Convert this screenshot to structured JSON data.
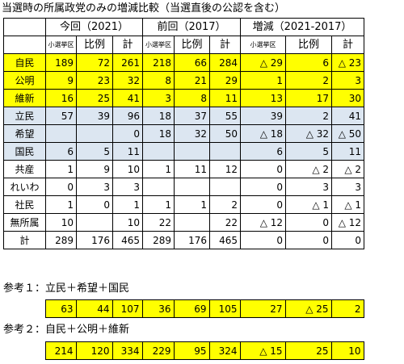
{
  "title": "当選時の所属政党のみの増減比較（当選直後の公認を含む）",
  "groups": [
    "今回（2021）",
    "前回（2017）",
    "増減（2021-2017）"
  ],
  "subheaders": [
    "小選挙区",
    "比例",
    "計"
  ],
  "rows": [
    {
      "party": "自民",
      "style": "yellow",
      "cells": [
        "189",
        "72",
        "261",
        "218",
        "66",
        "284",
        "△ 29",
        "6",
        "△ 23"
      ]
    },
    {
      "party": "公明",
      "style": "yellow",
      "cells": [
        "9",
        "23",
        "32",
        "8",
        "21",
        "29",
        "1",
        "2",
        "3"
      ]
    },
    {
      "party": "維新",
      "style": "yellow",
      "cells": [
        "16",
        "25",
        "41",
        "3",
        "8",
        "11",
        "13",
        "17",
        "30"
      ]
    },
    {
      "party": "立民",
      "style": "blue",
      "cells": [
        "57",
        "39",
        "96",
        "18",
        "37",
        "55",
        "39",
        "2",
        "41"
      ]
    },
    {
      "party": "希望",
      "style": "blue",
      "cells": [
        "",
        "",
        "0",
        "18",
        "32",
        "50",
        "△ 18",
        "△ 32",
        "△ 50"
      ]
    },
    {
      "party": "国民",
      "style": "blue",
      "cells": [
        "6",
        "5",
        "11",
        "",
        "",
        "",
        "6",
        "5",
        "11"
      ]
    },
    {
      "party": "共産",
      "style": "",
      "cells": [
        "1",
        "9",
        "10",
        "1",
        "11",
        "12",
        "0",
        "△ 2",
        "△ 2"
      ]
    },
    {
      "party": "れいわ",
      "style": "",
      "cells": [
        "0",
        "3",
        "3",
        "",
        "",
        "",
        "0",
        "3",
        "3"
      ]
    },
    {
      "party": "社民",
      "style": "",
      "cells": [
        "1",
        "0",
        "1",
        "1",
        "1",
        "2",
        "0",
        "△ 1",
        "△ 1"
      ]
    },
    {
      "party": "無所属",
      "style": "",
      "cells": [
        "10",
        "",
        "10",
        "22",
        "",
        "22",
        "△ 12",
        "0",
        "△ 12"
      ]
    },
    {
      "party": "計",
      "style": "",
      "cells": [
        "289",
        "176",
        "465",
        "289",
        "176",
        "465",
        "0",
        "0",
        "0"
      ]
    }
  ],
  "ref1": {
    "label": "参考１：立民＋希望＋国民",
    "cells": [
      "63",
      "44",
      "107",
      "36",
      "69",
      "105",
      "27",
      "△ 25",
      "2"
    ]
  },
  "ref2": {
    "label": "参考２：自民＋公明＋維新",
    "cells": [
      "214",
      "120",
      "334",
      "229",
      "95",
      "324",
      "△ 15",
      "25",
      "10"
    ]
  }
}
